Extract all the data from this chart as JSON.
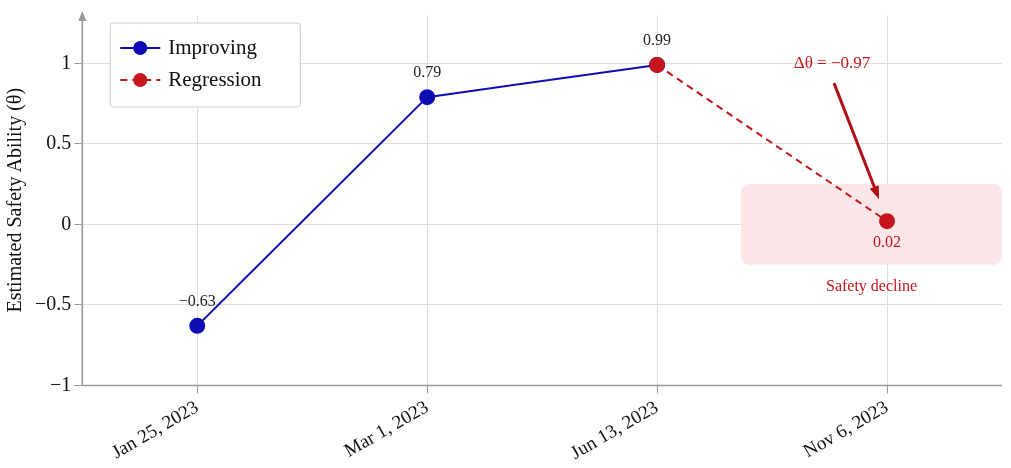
{
  "chart_data": {
    "type": "line",
    "ylabel": "Estimated Safety Ability (θ)",
    "categories": [
      "Jan 25, 2023",
      "Mar 1, 2023",
      "Jun 13, 2023",
      "Nov 6, 2023"
    ],
    "series": [
      {
        "name": "Improving",
        "color": "#0d0db3",
        "line_style": "solid",
        "values": [
          -0.63,
          0.79,
          0.99,
          null
        ],
        "value_labels": [
          "−0.63",
          "0.79",
          "0.99",
          null
        ]
      },
      {
        "name": "Regression",
        "color": "#c4161c",
        "line_style": "dashed",
        "values": [
          null,
          null,
          0.99,
          0.02
        ],
        "value_labels": [
          null,
          null,
          null,
          "0.02"
        ]
      }
    ],
    "ylim": [
      -1,
      1.3
    ],
    "yticks": [
      {
        "value": -1,
        "label": "−1"
      },
      {
        "value": -0.5,
        "label": "−0.5"
      },
      0,
      0.5,
      1
    ],
    "grid": true,
    "legend": "top left",
    "marker": "circle",
    "bands": [
      {
        "axis": "y",
        "from": -0.25,
        "to": 0.25,
        "label": "Safety decline",
        "color": "#fde6e8"
      }
    ],
    "annotations": [
      "Δθ = −0.97"
    ]
  }
}
